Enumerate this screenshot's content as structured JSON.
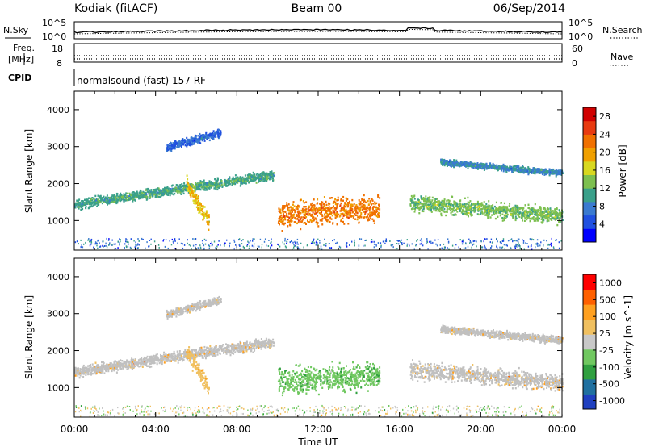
{
  "header": {
    "station": "Kodiak (fitACF)",
    "beam": "Beam 00",
    "date": "06/Sep/2014"
  },
  "summary": {
    "nsky_label": "N.Sky",
    "nsky_ticks": [
      "10^5",
      "10^0"
    ],
    "nsearch_label": "N.Search",
    "freq_label_line1": "Freq.",
    "freq_label_line2": "[MHz]",
    "freq_ticks": [
      "18",
      "8"
    ],
    "nave_label": "Nave",
    "nave_ticks": [
      "60",
      "0"
    ],
    "cpid_label": "CPID",
    "cpid_text": "normalsound (fast) 157 RF"
  },
  "colors": {
    "power_scale": [
      "#0000ff",
      "#2050e0",
      "#3a7ad0",
      "#3aa08a",
      "#7dc050",
      "#d8d820",
      "#f0a000",
      "#f07000",
      "#e83a10",
      "#d00000"
    ],
    "velocity_scale": [
      "#ff0000",
      "#ff6000",
      "#ffa020",
      "#f0c060",
      "#c8c8c8",
      "#70c860",
      "#30a040",
      "#2070a0",
      "#2040c0"
    ],
    "ground_scatter": "#c0c0c0"
  },
  "chart_data": [
    {
      "type": "heatmap",
      "name": "Power",
      "xlabel": "",
      "ylabel": "Slant Range [km]",
      "x_ticks": [
        "00:00",
        "04:00",
        "08:00",
        "12:00",
        "16:00",
        "20:00",
        "00:00"
      ],
      "y_ticks": [
        1000,
        2000,
        3000,
        4000
      ],
      "ylim": [
        200,
        4500
      ],
      "xlim_hours": [
        0,
        24
      ],
      "colorbar": {
        "label": "Power [dB]",
        "ticks": [
          4,
          8,
          12,
          16,
          20,
          24,
          28
        ],
        "range": [
          0,
          30
        ]
      },
      "bands": [
        {
          "t": [
            0,
            9.8
          ],
          "r_start": 1450,
          "r_end": 2250,
          "width": 180,
          "value": 11
        },
        {
          "t": [
            10,
            15
          ],
          "r_start": 1200,
          "r_end": 1350,
          "width": 500,
          "value": 22
        },
        {
          "t": [
            5.5,
            6.6
          ],
          "r_start": 2000,
          "r_end": 1000,
          "width": 300,
          "value": 18
        },
        {
          "t": [
            16.5,
            24
          ],
          "r_start": 1500,
          "r_end": 1150,
          "width": 300,
          "value": 13
        },
        {
          "t": [
            18,
            24
          ],
          "r_start": 2600,
          "r_end": 2300,
          "width": 120,
          "value": 9
        },
        {
          "t": [
            4.5,
            7.2
          ],
          "r_start": 3000,
          "r_end": 3400,
          "width": 150,
          "value": 6
        }
      ]
    },
    {
      "type": "heatmap",
      "name": "Velocity",
      "xlabel": "Time UT",
      "ylabel": "Slant Range [km]",
      "x_ticks": [
        "00:00",
        "04:00",
        "08:00",
        "12:00",
        "16:00",
        "20:00",
        "00:00"
      ],
      "y_ticks": [
        1000,
        2000,
        3000,
        4000
      ],
      "ylim": [
        200,
        4500
      ],
      "xlim_hours": [
        0,
        24
      ],
      "colorbar": {
        "label": "Velocity [m s^-1]",
        "ticks": [
          1000,
          500,
          100,
          25,
          -25,
          -100,
          -500,
          -1000
        ],
        "range": [
          -1200,
          1200
        ]
      },
      "bands": [
        {
          "t": [
            0,
            9.8
          ],
          "r_start": 1450,
          "r_end": 2250,
          "width": 200,
          "value": 0
        },
        {
          "t": [
            10,
            15
          ],
          "r_start": 1200,
          "r_end": 1350,
          "width": 500,
          "value": -300
        },
        {
          "t": [
            5.5,
            6.6
          ],
          "r_start": 2000,
          "r_end": 1000,
          "width": 300,
          "value": 300
        },
        {
          "t": [
            16.5,
            24
          ],
          "r_start": 1500,
          "r_end": 1150,
          "width": 320,
          "value": 0
        },
        {
          "t": [
            18,
            24
          ],
          "r_start": 2600,
          "r_end": 2300,
          "width": 140,
          "value": 0
        },
        {
          "t": [
            4.5,
            7.2
          ],
          "r_start": 3000,
          "r_end": 3400,
          "width": 150,
          "value": 0
        }
      ]
    }
  ]
}
